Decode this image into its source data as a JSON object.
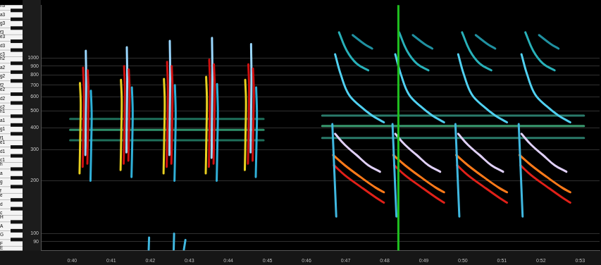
{
  "chart_data": {
    "type": "line",
    "log": "y",
    "grid": true,
    "xlim": [
      39.2,
      53.5
    ],
    "xticks": [
      {
        "value": 40,
        "label": "0:40"
      },
      {
        "value": 41,
        "label": "0:41"
      },
      {
        "value": 42,
        "label": "0:42"
      },
      {
        "value": 43,
        "label": "0:43"
      },
      {
        "value": 44,
        "label": "0:44"
      },
      {
        "value": 45,
        "label": "0:45"
      },
      {
        "value": 46,
        "label": "0:46"
      },
      {
        "value": 47,
        "label": "0:47"
      },
      {
        "value": 48,
        "label": "0:48"
      },
      {
        "value": 49,
        "label": "0:49"
      },
      {
        "value": 50,
        "label": "0:50"
      },
      {
        "value": 51,
        "label": "0:51"
      },
      {
        "value": 52,
        "label": "0:52"
      },
      {
        "value": 53,
        "label": "0:53"
      }
    ],
    "ylim": [
      80,
      2000
    ],
    "yticks": [
      90,
      100,
      200,
      300,
      400,
      500,
      600,
      700,
      800,
      900,
      1000
    ],
    "y2lim": [
      80,
      2000
    ],
    "y2ticks": [
      {
        "value": 1975.5,
        "label": "h3"
      },
      {
        "value": 1760,
        "label": "a3"
      },
      {
        "value": 1568,
        "label": "g3"
      },
      {
        "value": 1396.9,
        "label": "f3"
      },
      {
        "value": 1318.5,
        "label": "e3"
      },
      {
        "value": 1174.7,
        "label": "d3"
      },
      {
        "value": 1046.5,
        "label": "c3"
      },
      {
        "value": 987.8,
        "label": "h2"
      },
      {
        "value": 880,
        "label": "a2"
      },
      {
        "value": 784,
        "label": "g2"
      },
      {
        "value": 698.5,
        "label": "f2"
      },
      {
        "value": 659.3,
        "label": "e2"
      },
      {
        "value": 587.3,
        "label": "d2"
      },
      {
        "value": 523.3,
        "label": "c2"
      },
      {
        "value": 493.9,
        "label": "h1"
      },
      {
        "value": 440,
        "label": "a1"
      },
      {
        "value": 392,
        "label": "g1"
      },
      {
        "value": 349.2,
        "label": "f1"
      },
      {
        "value": 329.6,
        "label": "e1"
      },
      {
        "value": 293.7,
        "label": "d1"
      },
      {
        "value": 261.6,
        "label": "c1"
      },
      {
        "value": 246.9,
        "label": "h"
      },
      {
        "value": 220,
        "label": "a"
      },
      {
        "value": 196,
        "label": "g"
      },
      {
        "value": 174.6,
        "label": "f"
      },
      {
        "value": 164.8,
        "label": "e"
      },
      {
        "value": 146.8,
        "label": "d"
      },
      {
        "value": 130.8,
        "label": "c"
      },
      {
        "value": 123.5,
        "label": "H"
      },
      {
        "value": 110,
        "label": "A"
      },
      {
        "value": 98,
        "label": "G"
      },
      {
        "value": 87.3,
        "label": "F"
      },
      {
        "value": 82.4,
        "label": "E"
      }
    ],
    "series": [
      {
        "color": "#1f6f5a",
        "x": [
          39.95,
          44.9
        ],
        "values": [
          340,
          340
        ]
      },
      {
        "color": "#2f8f6a",
        "x": [
          39.95,
          44.9
        ],
        "values": [
          390,
          390
        ]
      },
      {
        "color": "#1f6f5a",
        "x": [
          39.95,
          44.9
        ],
        "values": [
          450,
          450
        ]
      },
      {
        "color": "#2a7a6a",
        "x": [
          46.4,
          53.1
        ],
        "values": [
          350,
          350
        ]
      },
      {
        "color": "#3a9a70",
        "x": [
          46.4,
          53.1
        ],
        "values": [
          410,
          410
        ]
      },
      {
        "color": "#2a7a6a",
        "x": [
          46.4,
          53.1
        ],
        "values": [
          470,
          470
        ]
      },
      {
        "color": "#e8d020",
        "x": [
          40.19,
          40.21,
          40.22,
          40.2
        ],
        "values": [
          220,
          380,
          560,
          720
        ]
      },
      {
        "color": "#d01010",
        "x": [
          40.27,
          40.29,
          40.3,
          40.28
        ],
        "values": [
          240,
          420,
          650,
          880
        ]
      },
      {
        "color": "#9ad8ff",
        "x": [
          40.34,
          40.35,
          40.36,
          40.35
        ],
        "values": [
          280,
          450,
          750,
          1100
        ]
      },
      {
        "color": "#d01010",
        "x": [
          40.39,
          40.41,
          40.42,
          40.4
        ],
        "values": [
          250,
          430,
          640,
          850
        ]
      },
      {
        "color": "#30b0d8",
        "x": [
          40.47,
          40.49,
          40.5,
          40.48
        ],
        "values": [
          200,
          330,
          480,
          650
        ]
      },
      {
        "color": "#e8d020",
        "x": [
          41.24,
          41.26,
          41.27,
          41.25
        ],
        "values": [
          230,
          390,
          580,
          750
        ]
      },
      {
        "color": "#d01010",
        "x": [
          41.32,
          41.34,
          41.35,
          41.33
        ],
        "values": [
          250,
          430,
          660,
          900
        ]
      },
      {
        "color": "#9ad8ff",
        "x": [
          41.39,
          41.4,
          41.41,
          41.4
        ],
        "values": [
          290,
          470,
          780,
          1150
        ]
      },
      {
        "color": "#d01010",
        "x": [
          41.44,
          41.46,
          41.47,
          41.45
        ],
        "values": [
          260,
          440,
          650,
          860
        ]
      },
      {
        "color": "#30b0d8",
        "x": [
          41.52,
          41.54,
          41.55,
          41.53
        ],
        "values": [
          210,
          340,
          500,
          680
        ]
      },
      {
        "color": "#e8d020",
        "x": [
          42.34,
          42.36,
          42.37,
          42.35
        ],
        "values": [
          220,
          380,
          570,
          760
        ]
      },
      {
        "color": "#d01010",
        "x": [
          42.42,
          42.44,
          42.45,
          42.43
        ],
        "values": [
          240,
          420,
          680,
          950
        ]
      },
      {
        "color": "#9ad8ff",
        "x": [
          42.49,
          42.5,
          42.51,
          42.5
        ],
        "values": [
          280,
          460,
          800,
          1250
        ]
      },
      {
        "color": "#d01010",
        "x": [
          42.54,
          42.56,
          42.57,
          42.55
        ],
        "values": [
          250,
          430,
          660,
          900
        ]
      },
      {
        "color": "#30b0d8",
        "x": [
          42.62,
          42.64,
          42.65,
          42.63
        ],
        "values": [
          200,
          330,
          490,
          700
        ]
      },
      {
        "color": "#e8d020",
        "x": [
          43.42,
          43.44,
          43.45,
          43.43
        ],
        "values": [
          220,
          390,
          580,
          780
        ]
      },
      {
        "color": "#d01010",
        "x": [
          43.5,
          43.52,
          43.53,
          43.51
        ],
        "values": [
          240,
          430,
          690,
          980
        ]
      },
      {
        "color": "#9ad8ff",
        "x": [
          43.57,
          43.58,
          43.59,
          43.58
        ],
        "values": [
          270,
          470,
          820,
          1300
        ]
      },
      {
        "color": "#d01010",
        "x": [
          43.62,
          43.64,
          43.65,
          43.63
        ],
        "values": [
          250,
          440,
          670,
          920
        ]
      },
      {
        "color": "#30b0d8",
        "x": [
          43.7,
          43.72,
          43.73,
          43.71
        ],
        "values": [
          200,
          340,
          500,
          710
        ]
      },
      {
        "color": "#e8d020",
        "x": [
          44.42,
          44.44,
          44.45,
          44.43
        ],
        "values": [
          230,
          390,
          570,
          750
        ]
      },
      {
        "color": "#d01010",
        "x": [
          44.5,
          44.52,
          44.53,
          44.51
        ],
        "values": [
          250,
          430,
          670,
          920
        ]
      },
      {
        "color": "#9ad8ff",
        "x": [
          44.57,
          44.58,
          44.59,
          44.58
        ],
        "values": [
          290,
          470,
          780,
          1200
        ]
      },
      {
        "color": "#d01010",
        "x": [
          44.62,
          44.64,
          44.65,
          44.63
        ],
        "values": [
          260,
          440,
          650,
          870
        ]
      },
      {
        "color": "#30b0d8",
        "x": [
          44.7,
          44.72,
          44.73,
          44.71
        ],
        "values": [
          210,
          340,
          490,
          680
        ]
      },
      {
        "color": "#ff7a1a",
        "x": [
          46.68,
          46.98,
          47.38,
          47.78,
          47.98
        ],
        "values": [
          280,
          245,
          210,
          182,
          172
        ]
      },
      {
        "color": "#e02018",
        "x": [
          46.7,
          46.98,
          47.38,
          47.78,
          47.98
        ],
        "values": [
          245,
          215,
          185,
          160,
          150
        ]
      },
      {
        "color": "#e0d0f8",
        "x": [
          46.73,
          46.98,
          47.28,
          47.58,
          47.88
        ],
        "values": [
          370,
          320,
          280,
          245,
          225
        ]
      },
      {
        "color": "#50d0f0",
        "x": [
          46.73,
          46.88,
          47.08,
          47.38,
          47.68,
          47.98
        ],
        "values": [
          1050,
          800,
          620,
          530,
          470,
          430
        ]
      },
      {
        "color": "#28b0b8",
        "x": [
          46.83,
          47.03,
          47.28,
          47.58
        ],
        "values": [
          1400,
          1100,
          930,
          850
        ]
      },
      {
        "color": "#2090a0",
        "x": [
          47.18,
          47.48,
          47.68
        ],
        "values": [
          1350,
          1200,
          1130
        ]
      },
      {
        "color": "#40b8e0",
        "x": [
          46.66,
          46.7,
          46.76
        ],
        "values": [
          420,
          260,
          125
        ]
      },
      {
        "color": "#ff7a1a",
        "x": [
          48.22,
          48.52,
          48.92,
          49.32,
          49.52
        ],
        "values": [
          280,
          245,
          210,
          182,
          172
        ]
      },
      {
        "color": "#e02018",
        "x": [
          48.24,
          48.52,
          48.92,
          49.32,
          49.52
        ],
        "values": [
          245,
          215,
          185,
          160,
          150
        ]
      },
      {
        "color": "#e0d0f8",
        "x": [
          48.27,
          48.52,
          48.82,
          49.12,
          49.42
        ],
        "values": [
          370,
          320,
          280,
          245,
          225
        ]
      },
      {
        "color": "#50d0f0",
        "x": [
          48.27,
          48.42,
          48.62,
          48.92,
          49.22,
          49.52
        ],
        "values": [
          1050,
          800,
          620,
          530,
          470,
          430
        ]
      },
      {
        "color": "#28b0b8",
        "x": [
          48.37,
          48.57,
          48.82,
          49.12
        ],
        "values": [
          1400,
          1100,
          930,
          850
        ]
      },
      {
        "color": "#2090a0",
        "x": [
          48.72,
          49.02,
          49.22
        ],
        "values": [
          1350,
          1200,
          1130
        ]
      },
      {
        "color": "#40b8e0",
        "x": [
          48.2,
          48.24,
          48.3
        ],
        "values": [
          420,
          260,
          125
        ]
      },
      {
        "color": "#ff7a1a",
        "x": [
          49.83,
          50.13,
          50.53,
          50.93,
          51.13
        ],
        "values": [
          280,
          245,
          210,
          182,
          172
        ]
      },
      {
        "color": "#e02018",
        "x": [
          49.85,
          50.13,
          50.53,
          50.93,
          51.13
        ],
        "values": [
          245,
          215,
          185,
          160,
          150
        ]
      },
      {
        "color": "#e0d0f8",
        "x": [
          49.88,
          50.13,
          50.43,
          50.73,
          51.03
        ],
        "values": [
          370,
          320,
          280,
          245,
          225
        ]
      },
      {
        "color": "#50d0f0",
        "x": [
          49.88,
          50.03,
          50.23,
          50.53,
          50.83,
          51.13
        ],
        "values": [
          1050,
          800,
          620,
          530,
          470,
          430
        ]
      },
      {
        "color": "#28b0b8",
        "x": [
          49.98,
          50.18,
          50.43,
          50.73
        ],
        "values": [
          1400,
          1100,
          930,
          850
        ]
      },
      {
        "color": "#2090a0",
        "x": [
          50.33,
          50.63,
          50.83
        ],
        "values": [
          1350,
          1200,
          1130
        ]
      },
      {
        "color": "#40b8e0",
        "x": [
          49.81,
          49.85,
          49.91
        ],
        "values": [
          420,
          260,
          125
        ]
      },
      {
        "color": "#ff7a1a",
        "x": [
          51.45,
          51.75,
          52.15,
          52.55,
          52.75
        ],
        "values": [
          280,
          245,
          210,
          182,
          172
        ]
      },
      {
        "color": "#e02018",
        "x": [
          51.47,
          51.75,
          52.15,
          52.55,
          52.75
        ],
        "values": [
          245,
          215,
          185,
          160,
          150
        ]
      },
      {
        "color": "#e0d0f8",
        "x": [
          51.5,
          51.75,
          52.05,
          52.35,
          52.65
        ],
        "values": [
          370,
          320,
          280,
          245,
          225
        ]
      },
      {
        "color": "#50d0f0",
        "x": [
          51.5,
          51.65,
          51.85,
          52.15,
          52.45,
          52.75
        ],
        "values": [
          1050,
          800,
          620,
          530,
          470,
          430
        ]
      },
      {
        "color": "#28b0b8",
        "x": [
          51.6,
          51.8,
          52.05,
          52.35
        ],
        "values": [
          1400,
          1100,
          930,
          850
        ]
      },
      {
        "color": "#2090a0",
        "x": [
          51.95,
          52.25,
          52.45
        ],
        "values": [
          1350,
          1200,
          1130
        ]
      },
      {
        "color": "#40b8e0",
        "x": [
          51.43,
          51.47,
          51.53
        ],
        "values": [
          420,
          260,
          125
        ]
      },
      {
        "color": "#40b8e0",
        "x": [
          41.96,
          41.97
        ],
        "values": [
          81,
          95
        ]
      },
      {
        "color": "#40b8e0",
        "x": [
          42.6,
          42.61
        ],
        "values": [
          81,
          100
        ]
      },
      {
        "color": "#40b8e0",
        "x": [
          42.86,
          42.9
        ],
        "values": [
          81,
          92
        ]
      },
      {
        "color": "#20c020",
        "x": [
          48.35,
          48.35
        ],
        "values": [
          80,
          2000
        ]
      }
    ]
  }
}
